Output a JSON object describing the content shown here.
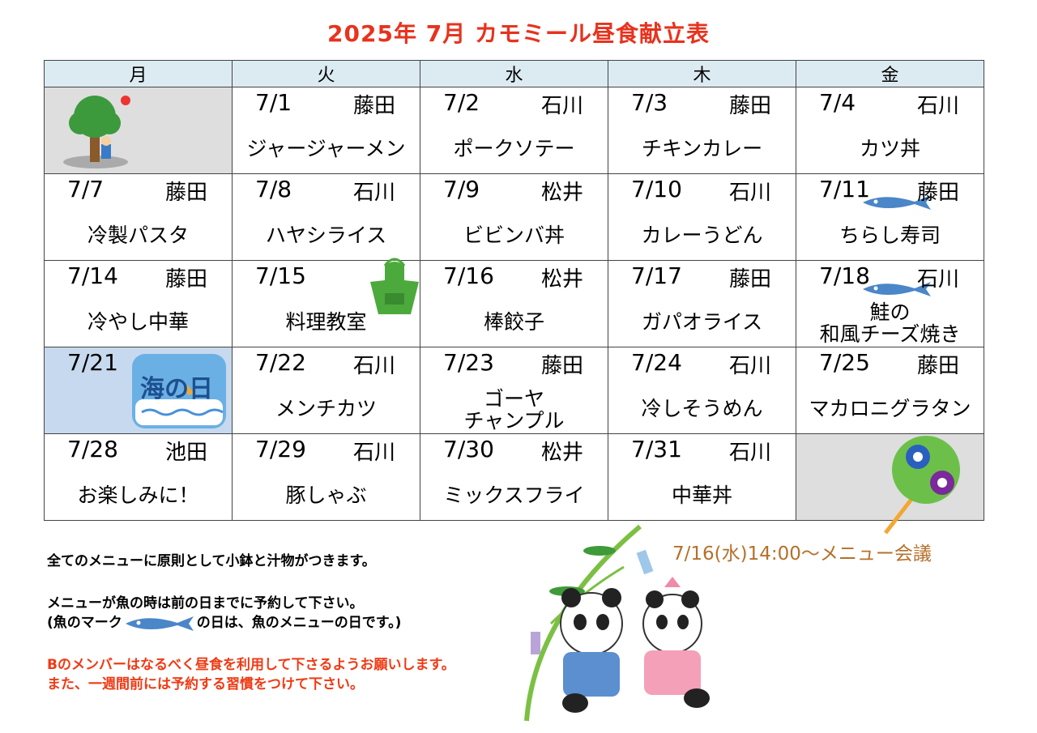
{
  "title": "2025年  7月    カモミール昼食献立表",
  "weekdays": [
    "月",
    "火",
    "水",
    "木",
    "金"
  ],
  "weeks": [
    [
      {
        "illustration": "tree-icon",
        "bg": "gray"
      },
      {
        "date": "7/1",
        "staff": "藤田",
        "menu": [
          "ジャージャーメン"
        ]
      },
      {
        "date": "7/2",
        "staff": "石川",
        "menu": [
          "ポークソテー"
        ]
      },
      {
        "date": "7/3",
        "staff": "藤田",
        "menu": [
          "チキンカレー"
        ]
      },
      {
        "date": "7/4",
        "staff": "石川",
        "menu": [
          "カツ丼"
        ]
      }
    ],
    [
      {
        "date": "7/7",
        "staff": "藤田",
        "menu": [
          "冷製パスタ"
        ]
      },
      {
        "date": "7/8",
        "staff": "石川",
        "menu": [
          "ハヤシライス"
        ]
      },
      {
        "date": "7/9",
        "staff": "松井",
        "menu": [
          "ビビンバ丼"
        ]
      },
      {
        "date": "7/10",
        "staff": "石川",
        "menu": [
          "カレーうどん"
        ]
      },
      {
        "date": "7/11",
        "staff": "藤田",
        "menu": [
          "ちらし寿司"
        ],
        "fish": true
      }
    ],
    [
      {
        "date": "7/14",
        "staff": "藤田",
        "menu": [
          "冷やし中華"
        ]
      },
      {
        "date": "7/15",
        "staff": "",
        "menu": [
          "料理教室"
        ],
        "illustration": "apron-icon"
      },
      {
        "date": "7/16",
        "staff": "松井",
        "menu": [
          "棒餃子"
        ]
      },
      {
        "date": "7/17",
        "staff": "藤田",
        "menu": [
          "ガパオライス"
        ]
      },
      {
        "date": "7/18",
        "staff": "石川",
        "menu": [
          "鮭の",
          "和風チーズ焼き"
        ],
        "fish": true
      }
    ],
    [
      {
        "date": "7/21",
        "bg": "blue",
        "illustration": "umi-no-hi-icon",
        "holiday_label": "海の日"
      },
      {
        "date": "7/22",
        "staff": "石川",
        "menu": [
          "メンチカツ"
        ]
      },
      {
        "date": "7/23",
        "staff": "藤田",
        "menu": [
          "ゴーヤ",
          "チャンプル"
        ]
      },
      {
        "date": "7/24",
        "staff": "石川",
        "menu": [
          "冷しそうめん"
        ]
      },
      {
        "date": "7/25",
        "staff": "藤田",
        "menu": [
          "マカロニグラタン"
        ]
      }
    ],
    [
      {
        "date": "7/28",
        "staff": "池田",
        "menu": [
          "お楽しみに！"
        ]
      },
      {
        "date": "7/29",
        "staff": "石川",
        "menu": [
          "豚しゃぶ"
        ]
      },
      {
        "date": "7/30",
        "staff": "松井",
        "menu": [
          "ミックスフライ"
        ]
      },
      {
        "date": "7/31",
        "staff": "石川",
        "menu": [
          "中華丼"
        ]
      },
      {
        "illustration": "uchiwa-icon",
        "bg": "gray"
      }
    ]
  ],
  "notes": {
    "line1": "全てのメニューに原則として小鉢と汁物がつきます。",
    "line2": "メニューが魚の時は前の日までに予約して下さい。",
    "line3a": "(魚のマーク",
    "line3b": "の日は、魚のメニューの日です。)",
    "line4": "Bのメンバーはなるべく昼食を利用して下さるようお願いします。",
    "line5": "また、一週間前には予約する習慣をつけて下さい。"
  },
  "meeting": "7/16(水)14:00～メニュー会議",
  "colors": {
    "title": "#e8321e",
    "header_bg": "#dcebf2",
    "fish": "#4a86c8",
    "meeting": "#b5702a"
  }
}
